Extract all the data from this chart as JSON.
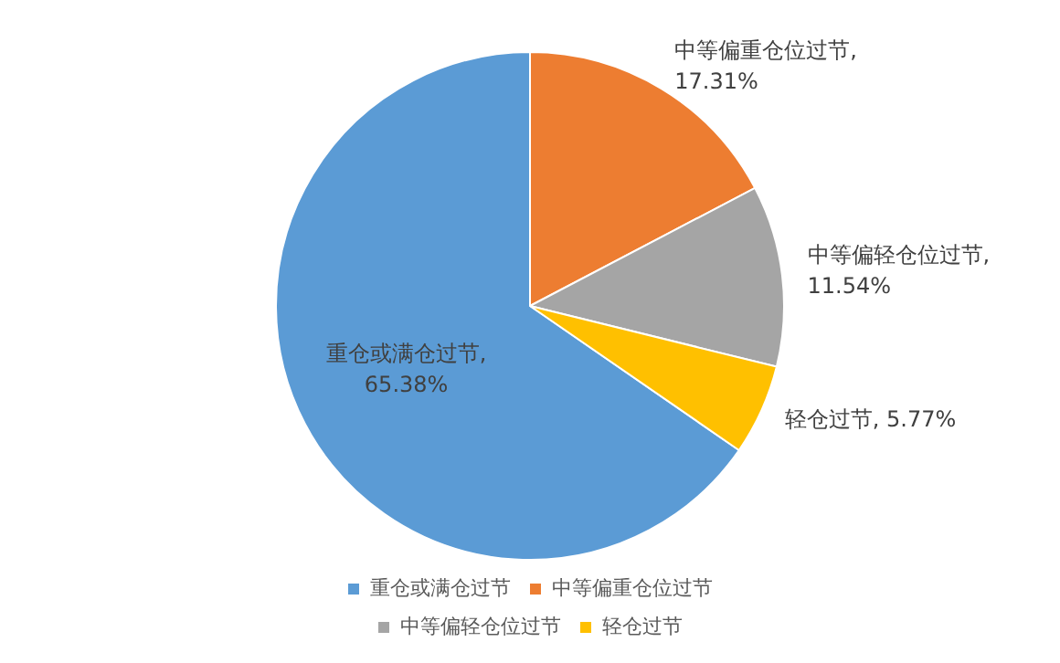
{
  "chart_data": {
    "type": "pie",
    "categories": [
      "重仓或满仓过节",
      "中等偏重仓位过节",
      "中等偏轻仓位过节",
      "轻仓过节"
    ],
    "values": [
      65.38,
      17.31,
      11.54,
      5.77
    ],
    "colors": [
      "#5b9bd5",
      "#ed7d31",
      "#a5a5a5",
      "#ffc000"
    ],
    "value_labels": [
      "重仓或满仓过节,\n65.38%",
      "中等偏重仓位过节,\n17.31%",
      "中等偏轻仓位过节,\n11.54%",
      "轻仓过节, 5.77%"
    ],
    "legend": "bottom"
  }
}
